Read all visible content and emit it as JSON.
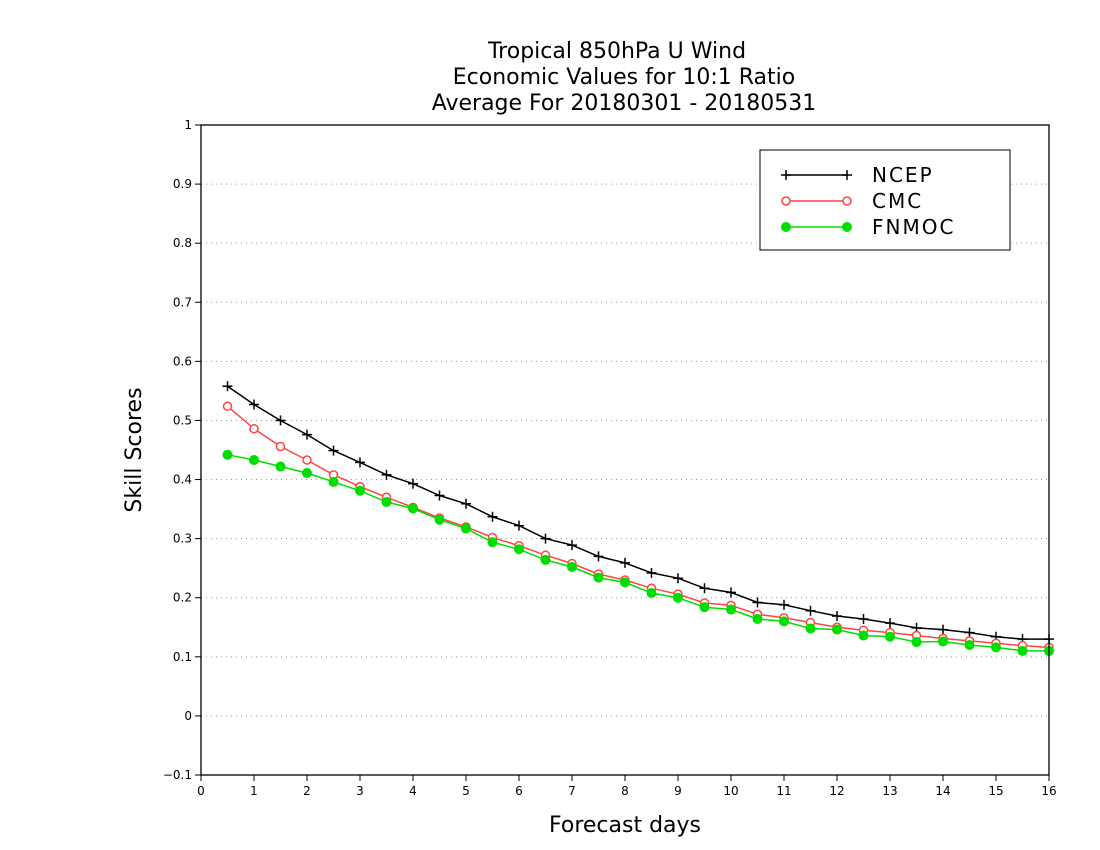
{
  "chart_data": {
    "type": "line",
    "title_lines": [
      "Tropical 850hPa U Wind",
      "Economic Values for 10:1 Ratio",
      "Average For 20180301 - 20180531"
    ],
    "xlabel": "Forecast days",
    "ylabel": "Skill Scores",
    "xlim": [
      0,
      16
    ],
    "ylim": [
      -0.1,
      1
    ],
    "xticks": [
      0,
      1,
      2,
      3,
      4,
      5,
      6,
      7,
      8,
      9,
      10,
      11,
      12,
      13,
      14,
      15,
      16
    ],
    "yticks": [
      -0.1,
      0,
      0.1,
      0.2,
      0.3,
      0.4,
      0.5,
      0.6,
      0.7,
      0.8,
      0.9,
      1
    ],
    "ytick_labels": [
      "−0.1",
      "0",
      "0.1",
      "0.2",
      "0.3",
      "0.4",
      "0.5",
      "0.6",
      "0.7",
      "0.8",
      "0.9",
      "1"
    ],
    "grid": true,
    "legend_position": "top-right",
    "x": [
      0.5,
      1,
      1.5,
      2,
      2.5,
      3,
      3.5,
      4,
      4.5,
      5,
      5.5,
      6,
      6.5,
      7,
      7.5,
      8,
      8.5,
      9,
      9.5,
      10,
      10.5,
      11,
      11.5,
      12,
      12.5,
      13,
      13.5,
      14,
      14.5,
      15,
      15.5,
      16
    ],
    "series": [
      {
        "name": "NCEP",
        "color": "#000000",
        "marker": "plus",
        "values": [
          0.558,
          0.527,
          0.5,
          0.476,
          0.449,
          0.429,
          0.408,
          0.393,
          0.373,
          0.359,
          0.337,
          0.322,
          0.3,
          0.289,
          0.27,
          0.259,
          0.242,
          0.233,
          0.216,
          0.209,
          0.192,
          0.188,
          0.178,
          0.169,
          0.164,
          0.157,
          0.149,
          0.146,
          0.141,
          0.134,
          0.13,
          0.13
        ]
      },
      {
        "name": "CMC",
        "color": "#ff4444",
        "marker": "open-circle",
        "values": [
          0.524,
          0.486,
          0.456,
          0.433,
          0.408,
          0.388,
          0.37,
          0.353,
          0.335,
          0.32,
          0.302,
          0.288,
          0.272,
          0.258,
          0.24,
          0.23,
          0.216,
          0.206,
          0.191,
          0.187,
          0.172,
          0.166,
          0.158,
          0.15,
          0.145,
          0.141,
          0.136,
          0.131,
          0.127,
          0.123,
          0.119,
          0.116
        ]
      },
      {
        "name": "FNMOC",
        "color": "#00dd00",
        "marker": "filled-circle",
        "values": [
          0.442,
          0.433,
          0.422,
          0.411,
          0.396,
          0.381,
          0.362,
          0.351,
          0.332,
          0.317,
          0.294,
          0.282,
          0.264,
          0.252,
          0.234,
          0.226,
          0.208,
          0.2,
          0.184,
          0.18,
          0.164,
          0.16,
          0.148,
          0.146,
          0.136,
          0.134,
          0.125,
          0.126,
          0.12,
          0.116,
          0.11,
          0.11
        ]
      }
    ]
  }
}
